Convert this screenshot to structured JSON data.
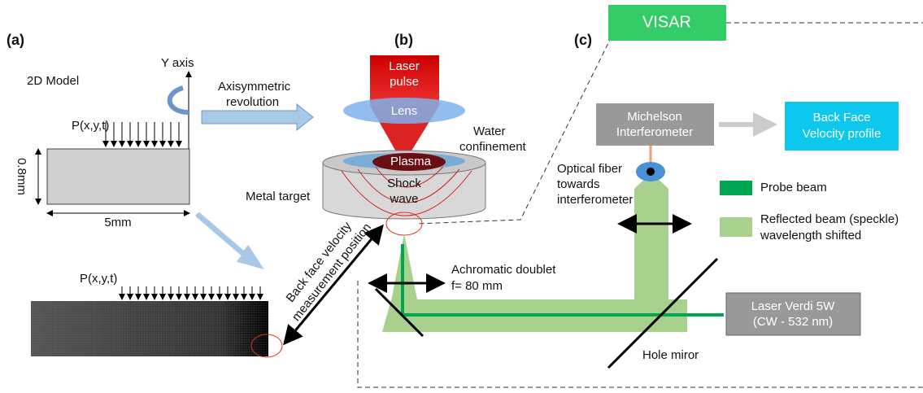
{
  "panels": {
    "a": "(a)",
    "b": "(b)",
    "c": "(c)"
  },
  "visar": "VISAR",
  "model": {
    "title": "2D Model",
    "y_axis": "Y axis",
    "revolution": [
      "Axisymmetric",
      "revolution"
    ],
    "load": "P(x,y,t)",
    "height": "0.8mm",
    "width": "5mm",
    "mesh_load": "P(x,y,t)",
    "measurement": [
      "Back face velocity",
      "measurement position"
    ]
  },
  "setup": {
    "laser": [
      "Laser",
      "pulse"
    ],
    "lens": "Lens",
    "water": [
      "Water",
      "confinement"
    ],
    "plasma": "Plasma",
    "shock": [
      "Shock",
      "wave"
    ],
    "target": "Metal target"
  },
  "visar_setup": {
    "michelson": [
      "Michelson",
      "Interferometer"
    ],
    "output": [
      "Back Face",
      "Velocity profile"
    ],
    "fiber": [
      "Optical fiber",
      "towards",
      "interferometer"
    ],
    "probe": "Probe beam",
    "reflected": [
      "Reflected beam (speckle)",
      "wavelength shifted"
    ],
    "doublet": [
      "Achromatic doublet",
      "f= 80 mm"
    ],
    "laser": [
      "Laser Verdi 5W",
      "(CW - 532 nm)"
    ],
    "mirror": "Hole miror"
  }
}
